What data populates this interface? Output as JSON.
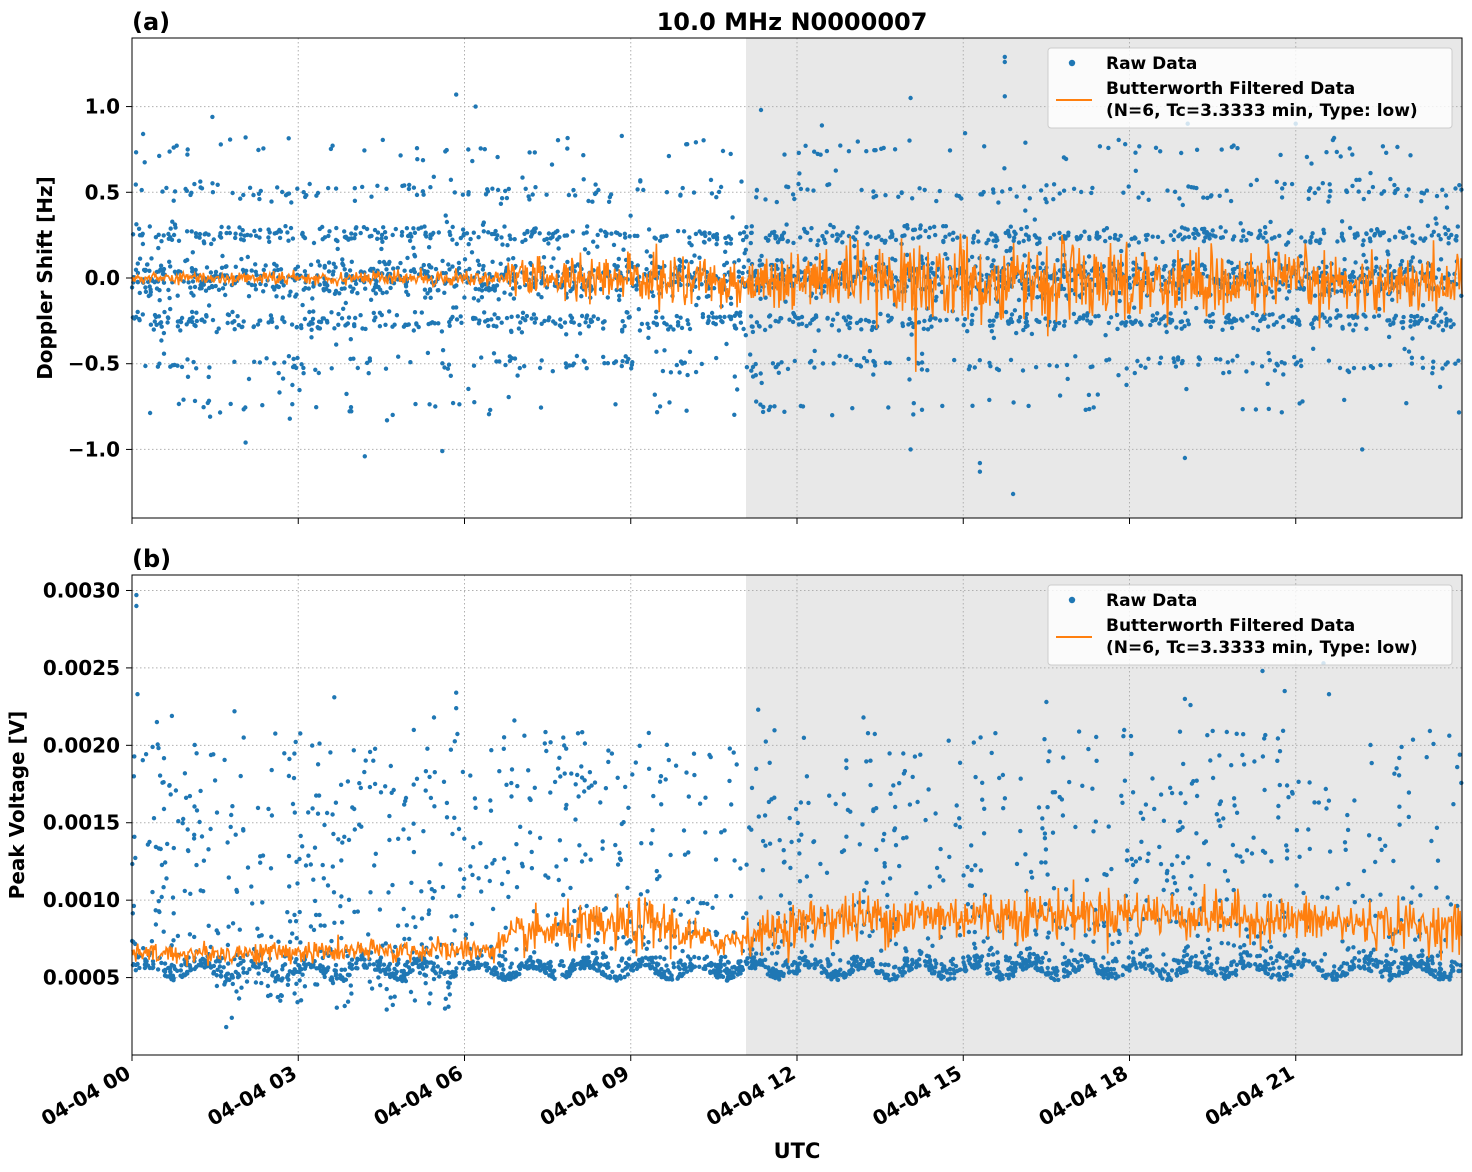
{
  "figure": {
    "title": "10.0 MHz N0000007",
    "xlabel": "UTC",
    "x_tick_labels": [
      "04-04 00",
      "04-04 03",
      "04-04 06",
      "04-04 09",
      "04-04 12",
      "04-04 15",
      "04-04 18",
      "04-04 21"
    ]
  },
  "colors": {
    "raw": "#1f77b4",
    "filtered": "#ff7f0e",
    "shade": "#e8e8e8",
    "grid": "#b0b0b0"
  },
  "legend": {
    "raw_label": "Raw Data",
    "filtered_label_line1": "Butterworth Filtered Data",
    "filtered_label_line2": "(N=6, Tc=3.3333 min, Type: low)"
  },
  "chart_data": [
    {
      "type": "scatter",
      "panel_label": "(a)",
      "ylabel": "Doppler Shift [Hz]",
      "xlim_hours": [
        0,
        24
      ],
      "ylim": [
        -1.4,
        1.4
      ],
      "yticks": [
        -1.0,
        -0.5,
        0.0,
        0.5,
        1.0
      ],
      "ytick_labels": [
        "−1.0",
        "−0.5",
        "0.0",
        "0.5",
        "1.0"
      ],
      "shaded_interval_hours": [
        11.08,
        24
      ],
      "legend_position": "upper right",
      "grid": true,
      "series": [
        {
          "name": "Raw Data",
          "kind": "points",
          "bands": [
            {
              "center": 0.0,
              "spread": 0.06,
              "weight": 0.45
            },
            {
              "center": 0.25,
              "spread": 0.03,
              "weight": 0.18
            },
            {
              "center": -0.25,
              "spread": 0.03,
              "weight": 0.18
            },
            {
              "center": 0.5,
              "spread": 0.03,
              "weight": 0.07
            },
            {
              "center": -0.5,
              "spread": 0.03,
              "weight": 0.07
            },
            {
              "center": 0.75,
              "spread": 0.03,
              "weight": 0.02
            },
            {
              "center": -0.75,
              "spread": 0.03,
              "weight": 0.02
            }
          ],
          "outliers": [
            {
              "x": 0.2,
              "y": 0.84
            },
            {
              "x": 1.0,
              "y": 0.72
            },
            {
              "x": 1.45,
              "y": 0.94
            },
            {
              "x": 2.05,
              "y": 0.82
            },
            {
              "x": 2.05,
              "y": -0.96
            },
            {
              "x": 4.2,
              "y": -1.04
            },
            {
              "x": 5.6,
              "y": -1.01
            },
            {
              "x": 5.85,
              "y": 1.07
            },
            {
              "x": 6.2,
              "y": 1.0
            },
            {
              "x": 10.0,
              "y": 0.78
            },
            {
              "x": 11.35,
              "y": 0.98
            },
            {
              "x": 12.45,
              "y": 0.89
            },
            {
              "x": 14.05,
              "y": 1.05
            },
            {
              "x": 14.05,
              "y": -1.0
            },
            {
              "x": 15.3,
              "y": -1.08
            },
            {
              "x": 15.3,
              "y": -1.13
            },
            {
              "x": 15.75,
              "y": 1.29
            },
            {
              "x": 15.75,
              "y": 1.26
            },
            {
              "x": 15.75,
              "y": 1.06
            },
            {
              "x": 15.9,
              "y": -1.26
            },
            {
              "x": 19.0,
              "y": -1.05
            },
            {
              "x": 19.05,
              "y": 0.9
            },
            {
              "x": 21.0,
              "y": 0.9
            },
            {
              "x": 22.2,
              "y": -1.0
            }
          ]
        },
        {
          "name": "Butterworth Filtered Data\n(N=6, Tc=3.3333 min, Type: low)",
          "kind": "line",
          "envelope": [
            {
              "x": 0.0,
              "mean": 0.0,
              "amp": 0.03
            },
            {
              "x": 6.5,
              "mean": 0.0,
              "amp": 0.04
            },
            {
              "x": 7.0,
              "mean": 0.0,
              "amp": 0.12
            },
            {
              "x": 11.0,
              "mean": -0.02,
              "amp": 0.14
            },
            {
              "x": 14.0,
              "mean": -0.02,
              "amp": 0.2
            },
            {
              "x": 17.0,
              "mean": -0.02,
              "amp": 0.2
            },
            {
              "x": 24.0,
              "mean": -0.03,
              "amp": 0.14
            }
          ]
        }
      ]
    },
    {
      "type": "scatter",
      "panel_label": "(b)",
      "ylabel": "Peak Voltage [V]",
      "xlim_hours": [
        0,
        24
      ],
      "ylim": [
        0.0,
        0.0031
      ],
      "yticks": [
        0.0005,
        0.001,
        0.0015,
        0.002,
        0.0025,
        0.003
      ],
      "ytick_labels": [
        "0.0005",
        "0.0010",
        "0.0015",
        "0.0020",
        "0.0025",
        "0.0030"
      ],
      "shaded_interval_hours": [
        11.08,
        24
      ],
      "legend_position": "upper right",
      "grid": true,
      "series": [
        {
          "name": "Raw Data",
          "kind": "points",
          "baseline": 0.00058,
          "upper_cloud_max": 0.0021,
          "outliers": [
            {
              "x": 0.08,
              "y": 0.00297
            },
            {
              "x": 0.08,
              "y": 0.0029
            },
            {
              "x": 0.1,
              "y": 0.00233
            },
            {
              "x": 0.45,
              "y": 0.00215
            },
            {
              "x": 0.72,
              "y": 0.00219
            },
            {
              "x": 1.85,
              "y": 0.00222
            },
            {
              "x": 3.65,
              "y": 0.00231
            },
            {
              "x": 5.45,
              "y": 0.00218
            },
            {
              "x": 5.85,
              "y": 0.00234
            },
            {
              "x": 5.85,
              "y": 0.00224
            },
            {
              "x": 6.9,
              "y": 0.00216
            },
            {
              "x": 11.3,
              "y": 0.00223
            },
            {
              "x": 13.2,
              "y": 0.00218
            },
            {
              "x": 16.5,
              "y": 0.00228
            },
            {
              "x": 19.0,
              "y": 0.0023
            },
            {
              "x": 19.1,
              "y": 0.00226
            },
            {
              "x": 20.4,
              "y": 0.00248
            },
            {
              "x": 20.8,
              "y": 0.00235
            },
            {
              "x": 21.6,
              "y": 0.00233
            },
            {
              "x": 21.5,
              "y": 0.00253
            },
            {
              "x": 1.7,
              "y": 0.00018
            },
            {
              "x": 1.8,
              "y": 0.00024
            }
          ]
        },
        {
          "name": "Butterworth Filtered Data\n(N=6, Tc=3.3333 min, Type: low)",
          "kind": "line",
          "envelope": [
            {
              "x": 0.0,
              "mean": 0.00065,
              "amp": 6e-05
            },
            {
              "x": 6.5,
              "mean": 0.00068,
              "amp": 7e-05
            },
            {
              "x": 7.0,
              "mean": 0.00078,
              "amp": 0.00012
            },
            {
              "x": 9.5,
              "mean": 0.00085,
              "amp": 0.00016
            },
            {
              "x": 10.5,
              "mean": 0.00072,
              "amp": 8e-05
            },
            {
              "x": 12.5,
              "mean": 0.00088,
              "amp": 0.00015
            },
            {
              "x": 18.0,
              "mean": 0.00092,
              "amp": 0.00014
            },
            {
              "x": 24.0,
              "mean": 0.00082,
              "amp": 0.00013
            }
          ]
        }
      ]
    }
  ]
}
